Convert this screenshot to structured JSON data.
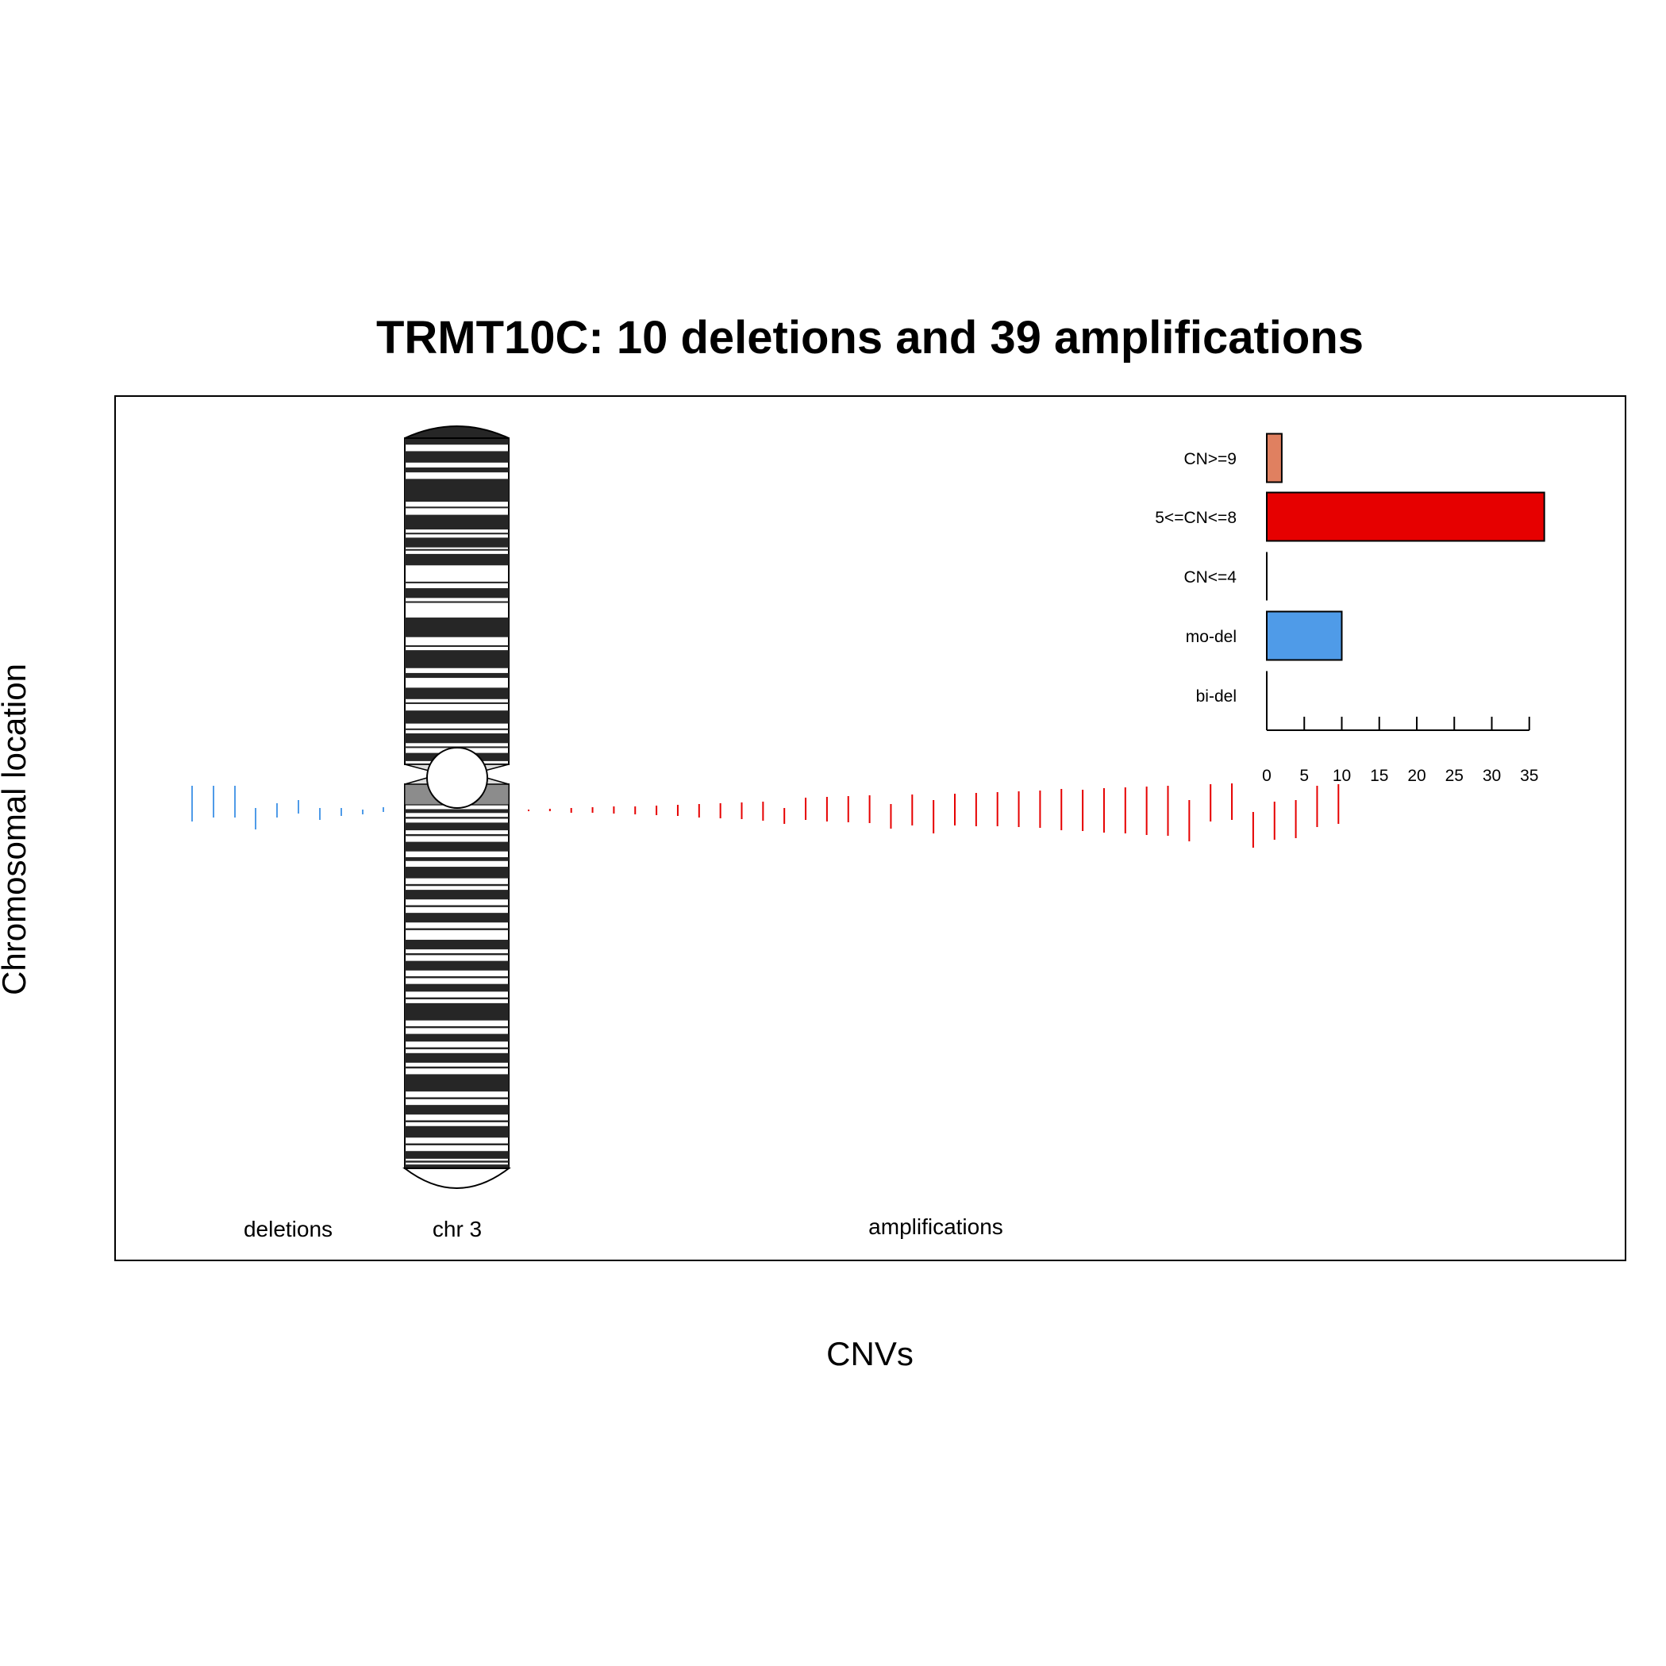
{
  "chart_data": {
    "type": "bar",
    "title": "TRMT10C: 10 deletions and 39 amplifications",
    "xlabel": "CNVs",
    "ylabel": "Chromosomal location",
    "panel_labels": {
      "deletions": "deletions",
      "chromosome": "chr 3",
      "amplifications": "amplifications"
    },
    "categories": [
      "CN>=9",
      "5<=CN<=8",
      "CN<=4",
      "mo-del",
      "bi-del"
    ],
    "values": [
      2,
      37,
      0,
      10,
      0
    ],
    "colors": [
      "#e08060",
      "#e60000",
      "#e60000",
      "#4f9be8",
      "#4f9be8"
    ],
    "xlim": [
      0,
      37
    ],
    "xticks": [
      0,
      5,
      10,
      15,
      20,
      25,
      30,
      35
    ],
    "deletion_count": 10,
    "amplification_count": 39,
    "deletion_color": "#4f9be8",
    "amplification_color": "#e60000"
  }
}
